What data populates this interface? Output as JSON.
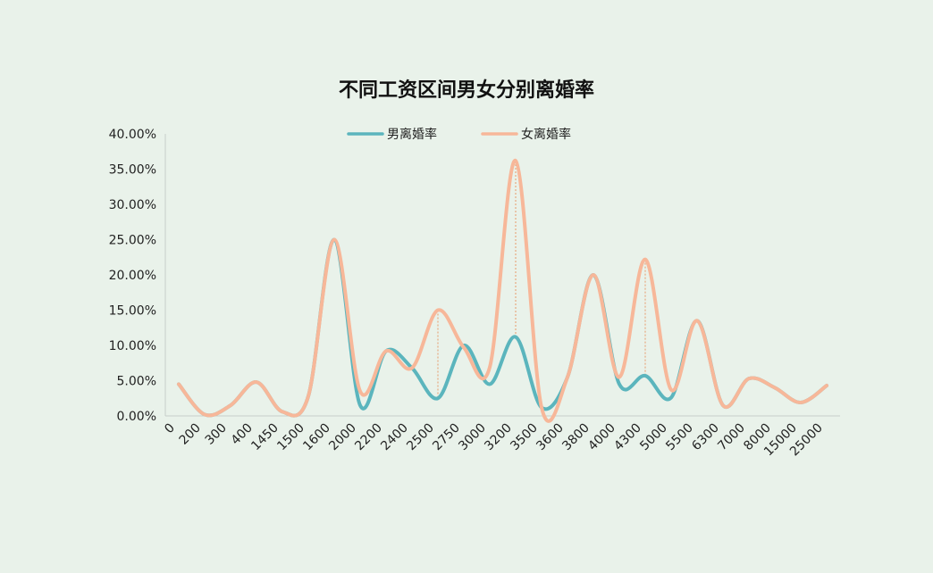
{
  "chart_data": {
    "type": "line",
    "title": "不同工资区间男女分别离婚率",
    "xlabel": "",
    "ylabel": "",
    "categories": [
      "0",
      "200",
      "300",
      "400",
      "1450",
      "1500",
      "1600",
      "2000",
      "2200",
      "2400",
      "2500",
      "2750",
      "3000",
      "3200",
      "3500",
      "3600",
      "3800",
      "4000",
      "4300",
      "5000",
      "5500",
      "6300",
      "7000",
      "8000",
      "15000",
      "25000"
    ],
    "y_ticks": [
      "0.00%",
      "5.00%",
      "10.00%",
      "15.00%",
      "20.00%",
      "25.00%",
      "30.00%",
      "35.00%",
      "40.00%"
    ],
    "ylim": [
      0,
      40
    ],
    "legend_position": "top",
    "grid": false,
    "series": [
      {
        "name": "男离婚率",
        "color": "#5bb5bd",
        "values": [
          4.5,
          0.2,
          1.5,
          4.8,
          0.6,
          2.8,
          25.0,
          1.5,
          9.2,
          6.8,
          2.5,
          10.0,
          4.5,
          11.2,
          1.2,
          5.5,
          20.0,
          4.5,
          5.7,
          2.6,
          13.5,
          1.5,
          5.3,
          4.0,
          1.9,
          4.3
        ]
      },
      {
        "name": "女离婚率",
        "color": "#f7b799",
        "values": [
          4.5,
          0.2,
          1.5,
          4.8,
          0.6,
          2.8,
          25.0,
          3.5,
          9.2,
          6.8,
          15.0,
          9.7,
          6.9,
          36.2,
          1.2,
          5.5,
          20.0,
          5.5,
          22.2,
          3.7,
          13.5,
          1.5,
          5.3,
          4.0,
          1.9,
          4.3
        ]
      }
    ]
  }
}
